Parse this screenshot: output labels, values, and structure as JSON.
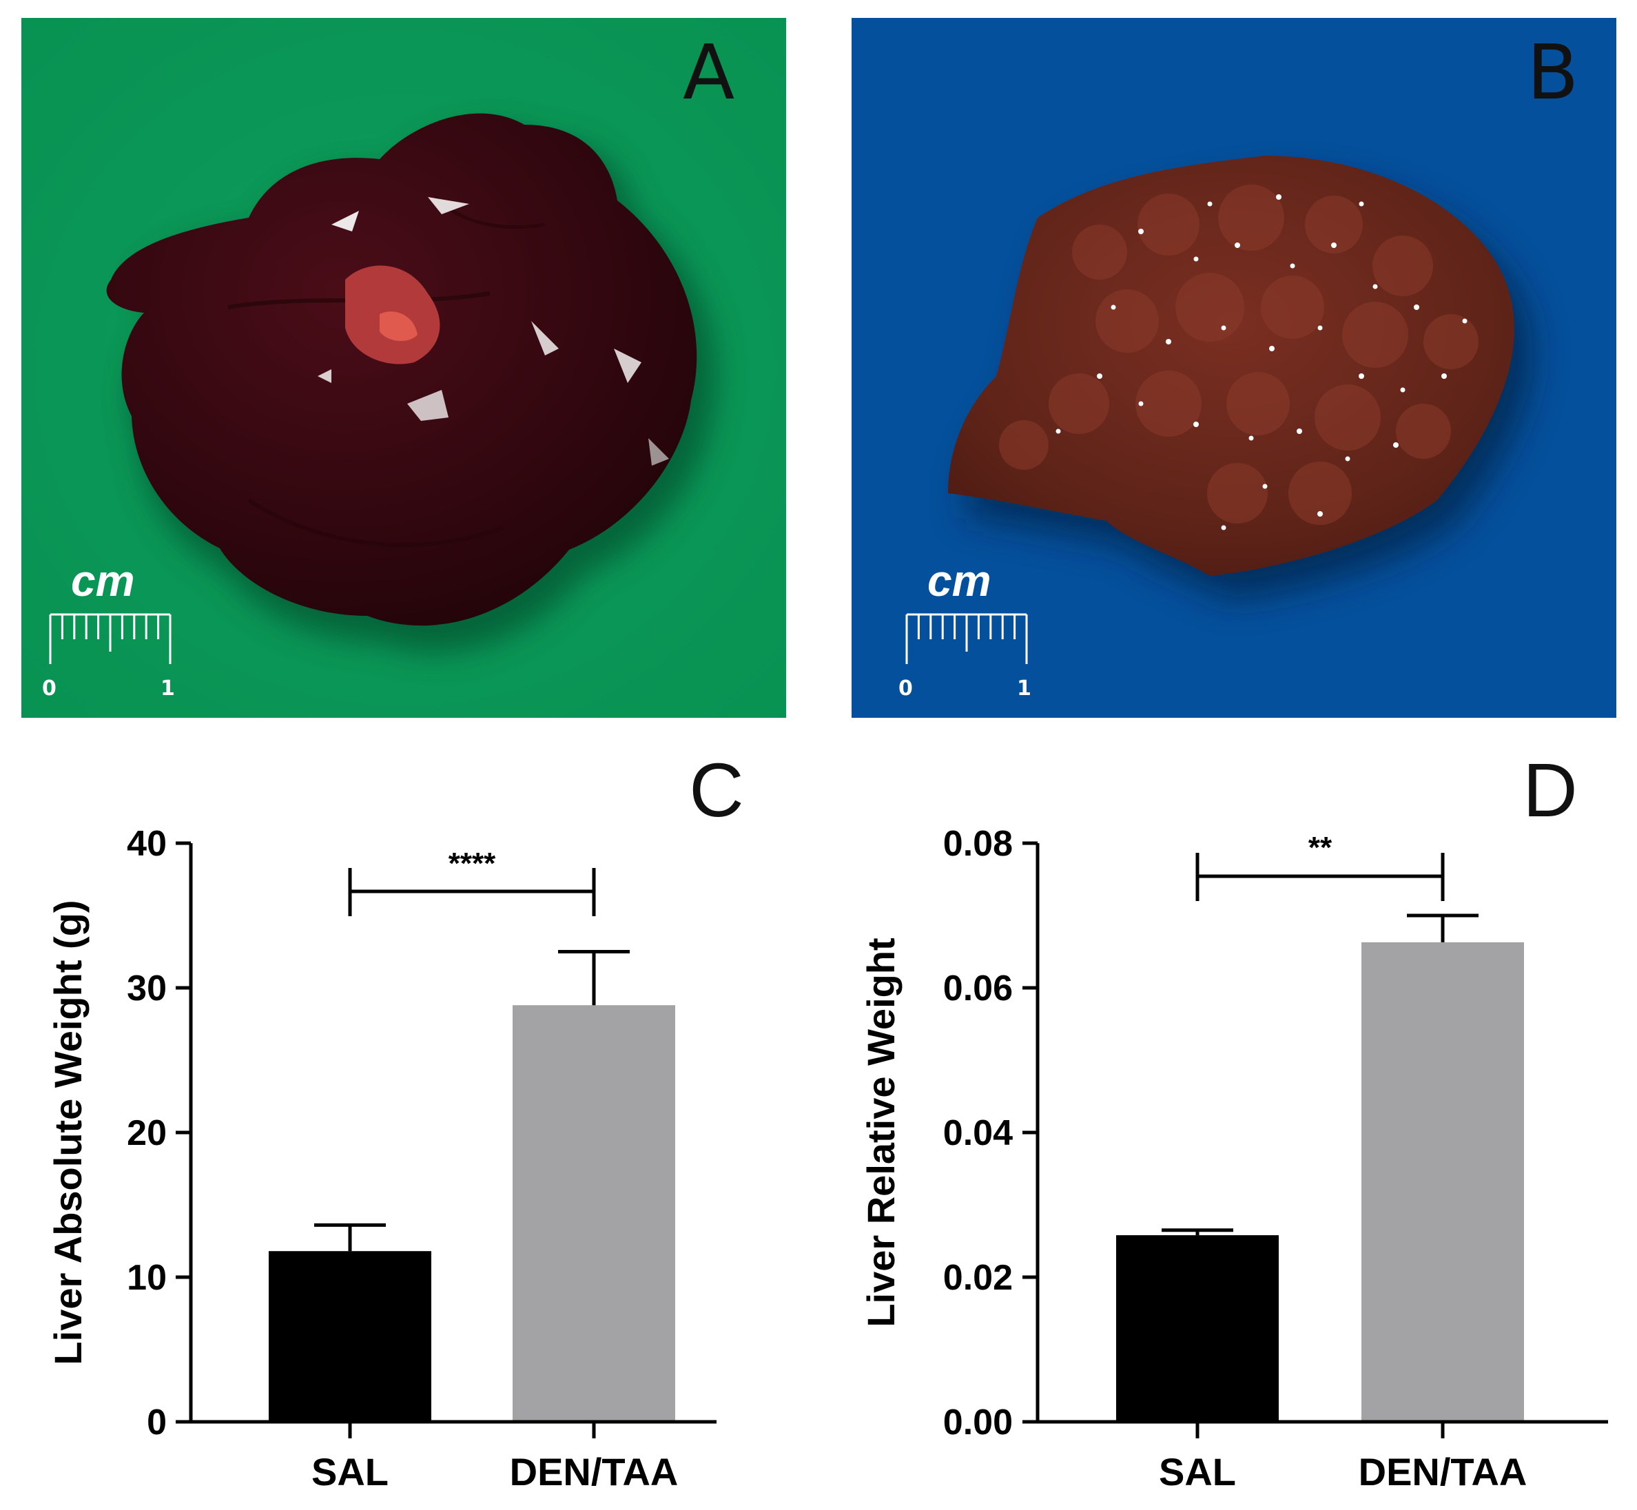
{
  "photo_panels": [
    {
      "label": "A",
      "background_color": "#0a9658",
      "tissue": "smooth dark-red liver",
      "scale_unit": "cm",
      "scale_ticks": [
        "0",
        "1"
      ]
    },
    {
      "label": "B",
      "background_color": "#05509c",
      "tissue": "nodular brown liver",
      "scale_unit": "cm",
      "scale_ticks": [
        "0",
        "1"
      ]
    }
  ],
  "chart_data": [
    {
      "panel": "C",
      "type": "bar",
      "categories": [
        "SAL",
        "DEN/TAA"
      ],
      "values": [
        11.8,
        28.8
      ],
      "errors": [
        1.8,
        3.7
      ],
      "colors": [
        "#000000",
        "#a3a3a6"
      ],
      "ylabel": "Liver Absolute Weight (g)",
      "ylim": [
        0,
        40
      ],
      "yticks": [
        "0",
        "10",
        "20",
        "30",
        "40"
      ],
      "significance": "****",
      "grid": false
    },
    {
      "panel": "D",
      "type": "bar",
      "categories": [
        "SAL",
        "DEN/TAA"
      ],
      "values": [
        0.0258,
        0.0663
      ],
      "errors": [
        0.0007,
        0.0037
      ],
      "colors": [
        "#000000",
        "#a3a3a6"
      ],
      "ylabel": "Liver Relative Weight",
      "ylim": [
        0,
        0.08
      ],
      "yticks": [
        "0.00",
        "0.02",
        "0.04",
        "0.06",
        "0.08"
      ],
      "significance": "**",
      "grid": false
    }
  ]
}
